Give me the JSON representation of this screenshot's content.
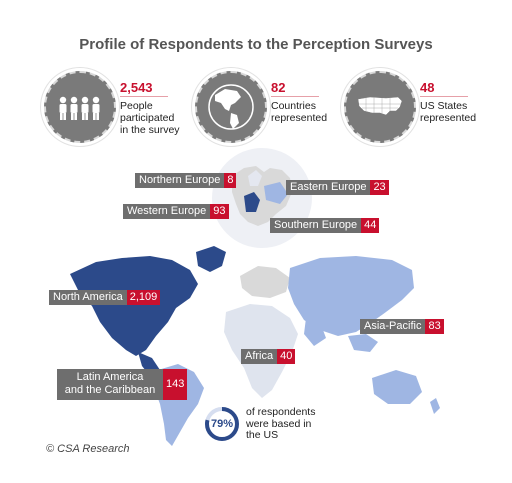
{
  "title": "Profile of Respondents to the Perception Surveys",
  "stats": [
    {
      "number": "2,543",
      "text_lines": [
        "People",
        "participated",
        "in the survey"
      ],
      "icon": "people-icon"
    },
    {
      "number": "82",
      "text_lines": [
        "Countries",
        "represented"
      ],
      "icon": "globe-icon"
    },
    {
      "number": "48",
      "text_lines": [
        "US States",
        "represented"
      ],
      "icon": "us-map-icon"
    }
  ],
  "regions": {
    "northern_europe": {
      "name": "Northern Europe",
      "value": "8"
    },
    "eastern_europe": {
      "name": "Eastern Europe",
      "value": "23"
    },
    "western_europe": {
      "name": "Western Europe",
      "value": "93"
    },
    "southern_europe": {
      "name": "Southern Europe",
      "value": "44"
    },
    "north_america": {
      "name": "North America",
      "value": "2,109"
    },
    "asia_pacific": {
      "name": "Asia-Pacific",
      "value": "83"
    },
    "africa": {
      "name": "Africa",
      "value": "40"
    },
    "latin_america": {
      "name_lines": [
        "Latin America",
        "and the Caribbean"
      ],
      "value": "143"
    }
  },
  "us_share": {
    "percent": "79%",
    "fraction": 0.79,
    "text_lines": [
      "of respondents",
      "were based in",
      "the US"
    ]
  },
  "credit": "© CSA Research",
  "colors": {
    "accent_red": "#c8102e",
    "dark_blue": "#2c4a8a",
    "light_blue": "#9fb6e3",
    "icon_gray": "#7a7a7a",
    "label_gray": "#6e6e6e",
    "land_gray": "#d9d9d9"
  }
}
